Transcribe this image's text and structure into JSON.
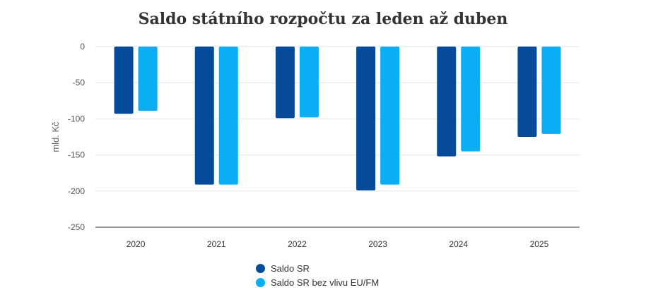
{
  "chart_data": {
    "type": "bar",
    "title": "Saldo státního rozpočtu za leden až duben",
    "ylabel": "mld. Kč",
    "xlabel": "",
    "categories": [
      "2020",
      "2021",
      "2022",
      "2023",
      "2024",
      "2025"
    ],
    "series": [
      {
        "name": "Saldo SR",
        "color": "#064b99",
        "values": [
          -93,
          -191,
          -99,
          -199,
          -152,
          -125
        ]
      },
      {
        "name": "Saldo SR bez vlivu EU/FM",
        "color": "#0aaef5",
        "values": [
          -89,
          -191,
          -98,
          -191,
          -145,
          -121
        ]
      }
    ],
    "ylim": [
      -250,
      0
    ],
    "yticks": [
      0,
      -50,
      -100,
      -150,
      -200,
      -250
    ],
    "grid": true,
    "legend_position": "bottom"
  }
}
